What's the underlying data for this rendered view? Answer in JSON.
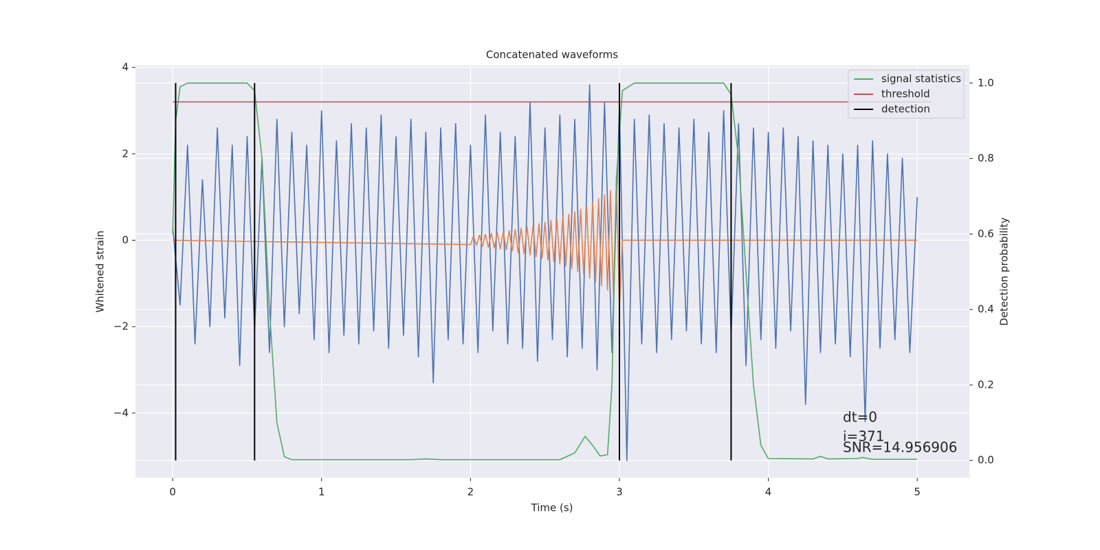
{
  "chart_data": {
    "type": "line",
    "title": "Concatenated waveforms",
    "xlabel": "Time (s)",
    "ylabel": "Whitened strain",
    "y2label": "Detection probability",
    "xlim": [
      -0.25,
      5.35
    ],
    "ylim": [
      -5.5,
      4.05
    ],
    "y2lim": [
      -0.046,
      1.047
    ],
    "xticks": [
      0,
      1,
      2,
      3,
      4,
      5
    ],
    "yticks": [
      {
        "value": -4,
        "label": "−4"
      },
      {
        "value": -2,
        "label": "−2"
      },
      0,
      2,
      4
    ],
    "y2ticks": [
      {
        "value": 0,
        "label": "0.0"
      },
      0.2,
      0.4,
      0.6,
      0.8,
      {
        "value": 1,
        "label": "1.0"
      }
    ],
    "grid": true,
    "legend": "upper right",
    "series": [
      {
        "color": "#4c72b0",
        "x": [
          0,
          0.05,
          0.1,
          0.15,
          0.2,
          0.25,
          0.3,
          0.35,
          0.4,
          0.45,
          0.5,
          0.55,
          0.6,
          0.65,
          0.7,
          0.75,
          0.8,
          0.85,
          0.9,
          0.95,
          1,
          1.05,
          1.1,
          1.15,
          1.2,
          1.25,
          1.3,
          1.35,
          1.4,
          1.45,
          1.5,
          1.55,
          1.6,
          1.65,
          1.7,
          1.75,
          1.8,
          1.85,
          1.9,
          1.95,
          2,
          2.05,
          2.1,
          2.15,
          2.2,
          2.25,
          2.3,
          2.35,
          2.4,
          2.45,
          2.5,
          2.55,
          2.6,
          2.65,
          2.7,
          2.75,
          2.8,
          2.85,
          2.9,
          2.95,
          3,
          3.05,
          3.1,
          3.15,
          3.2,
          3.25,
          3.3,
          3.35,
          3.4,
          3.45,
          3.5,
          3.55,
          3.6,
          3.65,
          3.7,
          3.75,
          3.8,
          3.85,
          3.9,
          3.95,
          4,
          4.05,
          4.1,
          4.15,
          4.2,
          4.25,
          4.3,
          4.35,
          4.4,
          4.45,
          4.5,
          4.55,
          4.6,
          4.65,
          4.7,
          4.75,
          4.8,
          4.85,
          4.9,
          4.95,
          5
        ],
        "values": [
          0.3,
          -1.5,
          2.2,
          -2.4,
          1.4,
          -2.0,
          2.6,
          -1.8,
          2.2,
          -2.9,
          2.4,
          -2.1,
          1.9,
          -2.6,
          2.8,
          -2.0,
          2.5,
          -1.7,
          2.2,
          -2.3,
          3.0,
          -2.6,
          2.3,
          -2.2,
          2.7,
          -2.4,
          2.6,
          -2.1,
          2.9,
          -2.5,
          2.4,
          -2.2,
          2.8,
          -2.7,
          2.5,
          -3.3,
          2.6,
          -2.3,
          2.7,
          -2.4,
          2.2,
          -2.6,
          2.9,
          -2.1,
          2.5,
          -2.4,
          2.4,
          -2.5,
          3.2,
          -2.8,
          2.6,
          -2.3,
          2.9,
          -2.7,
          2.8,
          -2.5,
          3.6,
          -3.0,
          3.2,
          -2.6,
          3.1,
          -5.1,
          2.8,
          -2.4,
          2.9,
          -2.6,
          2.7,
          -2.3,
          2.6,
          -2.1,
          2.8,
          -2.4,
          2.5,
          -2.6,
          3.0,
          -2.2,
          2.7,
          -2.9,
          2.6,
          -2.3,
          2.5,
          -2.5,
          2.6,
          -2.1,
          2.4,
          -3.8,
          2.3,
          -2.6,
          2.2,
          -2.4,
          2.0,
          -2.7,
          2.2,
          -4.2,
          2.3,
          -2.5,
          2.0,
          -2.3,
          1.9,
          -2.6,
          1.0
        ]
      },
      {
        "color": "#dd8452",
        "x": [
          0,
          2,
          2.02,
          2.04,
          2.06,
          2.08,
          2.1,
          2.12,
          2.14,
          2.16,
          2.18,
          2.2,
          2.22,
          2.24,
          2.26,
          2.28,
          2.3,
          2.32,
          2.34,
          2.36,
          2.38,
          2.4,
          2.42,
          2.44,
          2.46,
          2.48,
          2.5,
          2.52,
          2.54,
          2.56,
          2.58,
          2.6,
          2.62,
          2.64,
          2.66,
          2.68,
          2.7,
          2.72,
          2.74,
          2.76,
          2.78,
          2.8,
          2.82,
          2.84,
          2.86,
          2.88,
          2.9,
          2.92,
          2.94,
          2.96,
          2.98,
          3,
          3.02,
          5
        ],
        "values": [
          0,
          -0.1,
          0.1,
          -0.12,
          0.12,
          -0.14,
          0.14,
          -0.16,
          0.16,
          -0.18,
          0.18,
          -0.2,
          0.2,
          -0.22,
          0.22,
          -0.25,
          0.25,
          -0.28,
          0.28,
          -0.31,
          0.31,
          -0.34,
          0.34,
          -0.38,
          0.38,
          -0.42,
          0.42,
          -0.46,
          0.46,
          -0.5,
          0.5,
          -0.55,
          0.55,
          -0.6,
          0.6,
          -0.66,
          0.66,
          -0.72,
          0.72,
          -0.8,
          0.8,
          -0.88,
          0.88,
          -0.96,
          0.96,
          -1.05,
          1.05,
          -1.15,
          1.15,
          -1.3,
          1.4,
          -1.6,
          0,
          0
        ]
      },
      {
        "name": "signal statistics",
        "color": "#55a868",
        "axis": "y2",
        "x": [
          0,
          0.02,
          0.05,
          0.1,
          0.5,
          0.55,
          0.6,
          0.65,
          0.7,
          0.75,
          0.8,
          1.6,
          1.7,
          1.8,
          2.6,
          2.7,
          2.77,
          2.82,
          2.87,
          2.92,
          2.95,
          2.98,
          3.02,
          3.1,
          3.7,
          3.75,
          3.8,
          3.85,
          3.9,
          3.95,
          4,
          4.3,
          4.35,
          4.4,
          4.6,
          4.63,
          4.7,
          5
        ],
        "values": [
          0.6,
          0.9,
          0.99,
          1,
          1,
          0.98,
          0.8,
          0.4,
          0.1,
          0.01,
          0.002,
          0.002,
          0.004,
          0.002,
          0.002,
          0.02,
          0.064,
          0.04,
          0.012,
          0.015,
          0.2,
          0.75,
          0.98,
          1,
          1,
          0.97,
          0.8,
          0.5,
          0.2,
          0.04,
          0.005,
          0.004,
          0.011,
          0.004,
          0.005,
          0.008,
          0.003,
          0.003
        ]
      },
      {
        "name": "threshold",
        "color": "#c44e52",
        "axis": "y2",
        "x": [
          0,
          5.1
        ],
        "values": [
          0.95,
          0.95
        ]
      }
    ],
    "detection": {
      "name": "detection",
      "color": "#000000",
      "x": [
        0.02,
        0.55,
        3.0,
        3.75
      ],
      "ylim": [
        0,
        1
      ]
    },
    "annotations": [
      "dt=0",
      "i=371",
      "SNR=14.956906"
    ]
  }
}
